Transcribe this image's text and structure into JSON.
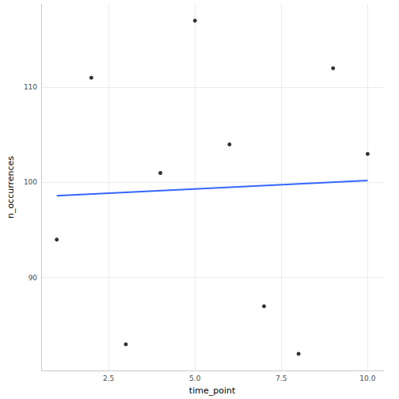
{
  "chart_data": {
    "type": "scatter",
    "x_label": "time_point",
    "y_label": "n_occurrences",
    "series": [
      {
        "type": "scatter",
        "color": "#000000",
        "marker": "circle",
        "x": [
          1,
          2,
          3,
          4,
          5,
          6,
          7,
          8,
          9,
          10
        ],
        "values": [
          94,
          111,
          83,
          101,
          117,
          104,
          87,
          82,
          112,
          103
        ]
      },
      {
        "type": "line",
        "color": "#3366ff",
        "line_style": "solid",
        "x": [
          1,
          10
        ],
        "values": [
          98.6,
          100.2
        ]
      }
    ],
    "xlim": [
      0.55,
      10.45
    ],
    "xticks": [
      2.5,
      {
        "value": 5,
        "label": "5.0"
      },
      7.5,
      {
        "value": 10,
        "label": "10.0"
      }
    ],
    "ylim": [
      80.25,
      118.75
    ],
    "yticks": [
      90,
      100,
      110
    ],
    "grid": true
  }
}
